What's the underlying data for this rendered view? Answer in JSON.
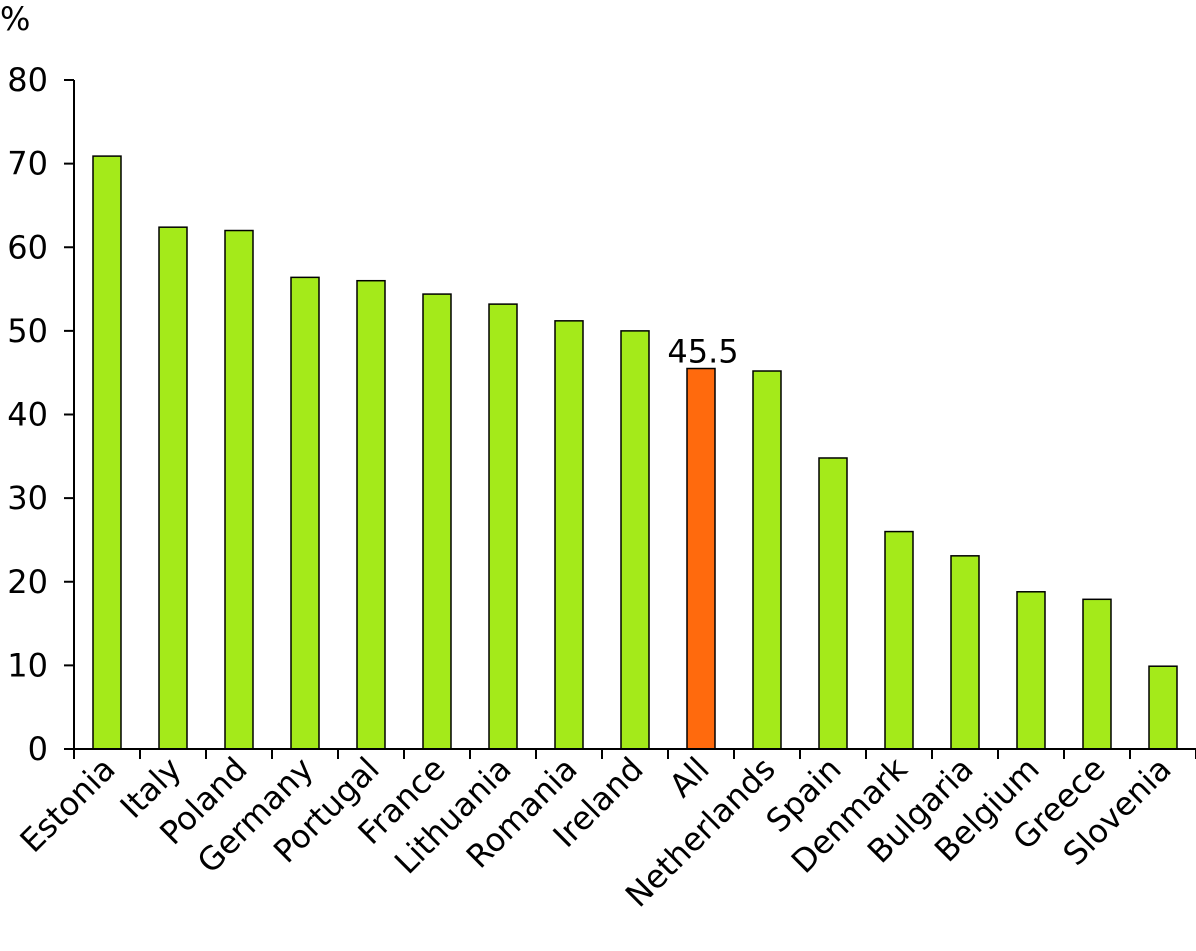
{
  "chart_data": {
    "type": "bar",
    "title": "",
    "xlabel": "",
    "ylabel": "%",
    "ylim": [
      0,
      80
    ],
    "yticks": [
      0,
      10,
      20,
      30,
      40,
      50,
      60,
      70,
      80
    ],
    "grid": false,
    "categories": [
      "Estonia",
      "Italy",
      "Poland",
      "Germany",
      "Portugal",
      "France",
      "Lithuania",
      "Romania",
      "Ireland",
      "All",
      "Netherlands",
      "Spain",
      "Denmark",
      "Bulgaria",
      "Belgium",
      "Greece",
      "Slovenia"
    ],
    "values": [
      70.9,
      62.4,
      62.0,
      56.4,
      56.0,
      54.4,
      53.2,
      51.2,
      50.0,
      45.5,
      45.2,
      34.8,
      26.0,
      23.1,
      18.8,
      17.9,
      9.9
    ],
    "highlight_index": 9,
    "highlight_label": "45.5",
    "colors": {
      "bar": "#a4ea1a",
      "highlight": "#ff6a0d",
      "stroke": "#000000",
      "axis": "#000000"
    }
  }
}
